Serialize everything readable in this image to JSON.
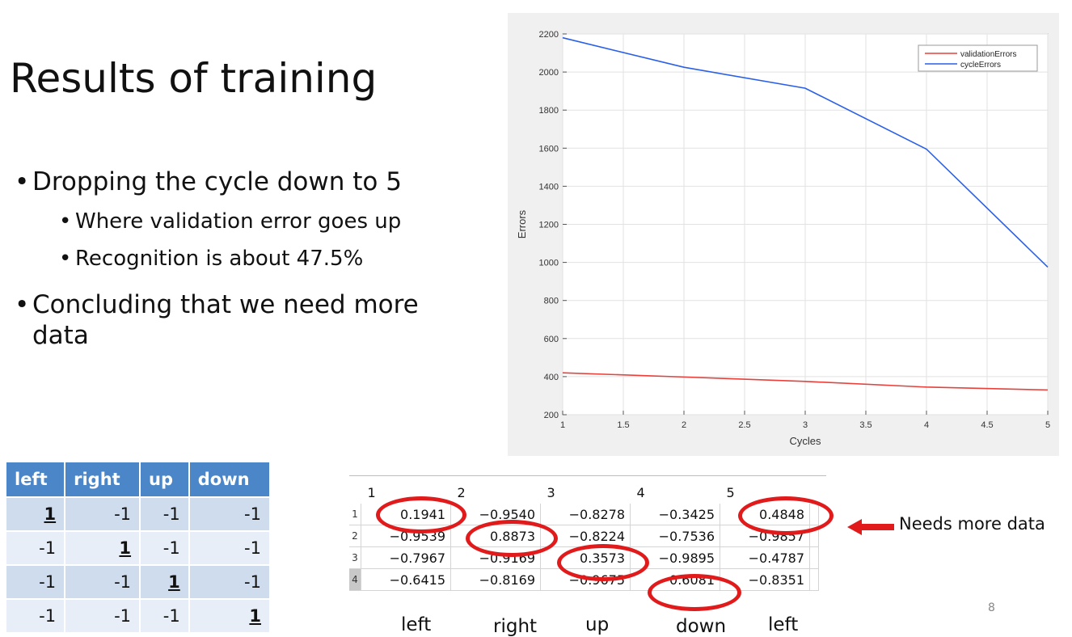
{
  "slide": {
    "title": "Results of training",
    "bullets": [
      "Dropping the cycle down to 5",
      "Where validation error goes up",
      "Recognition is about 47.5%",
      "Concluding that we need more data"
    ],
    "page_number": "8",
    "annotation": "Needs more data"
  },
  "direction_table": {
    "headers": [
      "left",
      "right",
      "up",
      "down"
    ],
    "rows": [
      [
        "1",
        "-1",
        "-1",
        "-1"
      ],
      [
        "-1",
        "1",
        "-1",
        "-1"
      ],
      [
        "-1",
        "-1",
        "1",
        "-1"
      ],
      [
        "-1",
        "-1",
        "-1",
        "1"
      ]
    ]
  },
  "output_matrix": {
    "column_headers": [
      "1",
      "2",
      "3",
      "4",
      "5"
    ],
    "row_headers": [
      "1",
      "2",
      "3",
      "4"
    ],
    "rows": [
      [
        "0.1941",
        "−0.9540",
        "−0.8278",
        "−0.3425",
        "0.4848"
      ],
      [
        "−0.9539",
        "0.8873",
        "−0.8224",
        "−0.7536",
        "−0.9857"
      ],
      [
        "−0.7967",
        "−0.9169",
        "0.3573",
        "−0.9895",
        "−0.4787"
      ],
      [
        "−0.6415",
        "−0.8169",
        "−0.9675",
        "0.6081",
        "−0.8351"
      ]
    ],
    "column_labels": [
      "left",
      "right",
      "up",
      "down",
      "left"
    ],
    "highlight_color": "#e11b1b"
  },
  "chart_data": {
    "type": "line",
    "title": "",
    "xlabel": "Cycles",
    "ylabel": "Errors",
    "xlim": [
      1,
      5
    ],
    "ylim": [
      200,
      2200
    ],
    "x_ticks": [
      "1",
      "1.5",
      "2",
      "2.5",
      "3",
      "3.5",
      "4",
      "4.5",
      "5"
    ],
    "y_ticks": [
      "200",
      "400",
      "600",
      "800",
      "1000",
      "1200",
      "1400",
      "1600",
      "1800",
      "2000",
      "2200"
    ],
    "grid": true,
    "legend_position": "top-right",
    "x": [
      1,
      2,
      3,
      4,
      5
    ],
    "series": [
      {
        "name": "validationErrors",
        "color": "#e8403a",
        "values": [
          420,
          398,
          375,
          345,
          330
        ]
      },
      {
        "name": "cycleErrors",
        "color": "#2a5fe8",
        "values": [
          2180,
          2025,
          1915,
          1595,
          975
        ]
      }
    ]
  }
}
